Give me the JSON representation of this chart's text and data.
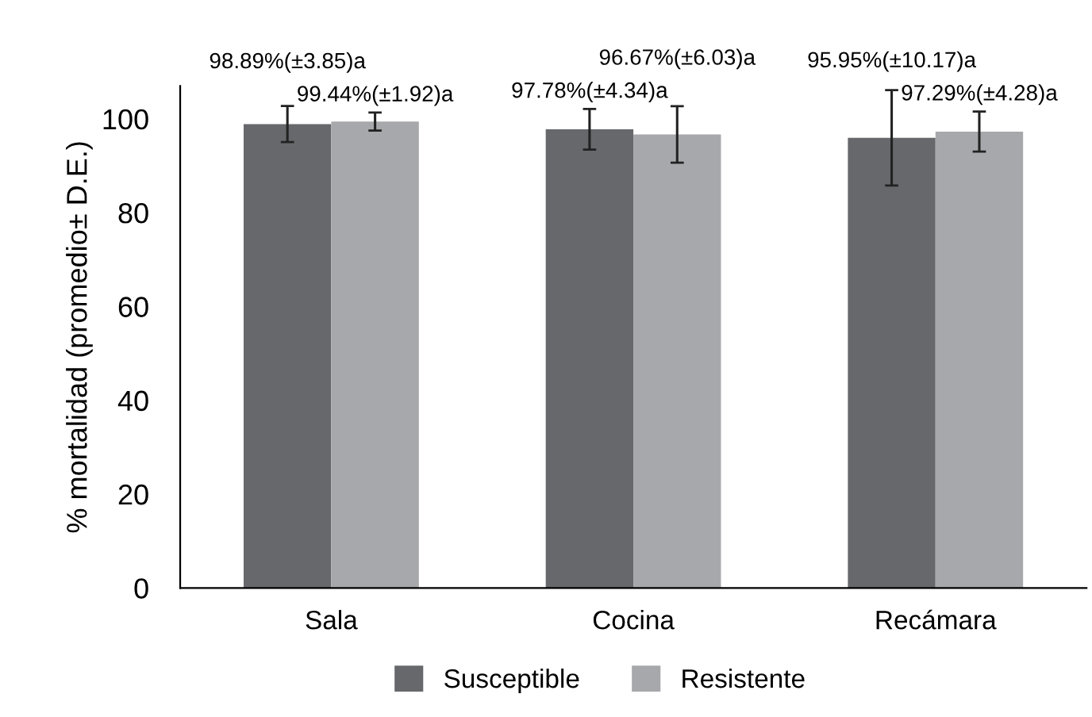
{
  "chart_data": {
    "type": "bar",
    "ylabel": "% mortalidad (promedio± D.E.)",
    "categories": [
      "Sala",
      "Cocina",
      "Recámara"
    ],
    "series": [
      {
        "name": "Susceptible",
        "color": "#67686c",
        "values": [
          98.89,
          97.78,
          95.95
        ],
        "errors": [
          3.85,
          4.34,
          10.17
        ],
        "value_labels": [
          "98.89%(±3.85)a",
          "97.78%(±4.34)a",
          "95.95%(±10.17)a"
        ]
      },
      {
        "name": "Resistente",
        "color": "#a7a8ab",
        "values": [
          99.44,
          96.67,
          97.29
        ],
        "errors": [
          1.92,
          6.03,
          4.28
        ],
        "value_labels": [
          "99.44%(±1.92)a",
          "96.67%(±6.03)a",
          "97.29%(±4.28)a"
        ]
      }
    ],
    "ylim": [
      0,
      107
    ],
    "yticks": [
      0,
      20,
      40,
      60,
      80,
      100
    ],
    "grid": false,
    "legend": "bottom"
  }
}
